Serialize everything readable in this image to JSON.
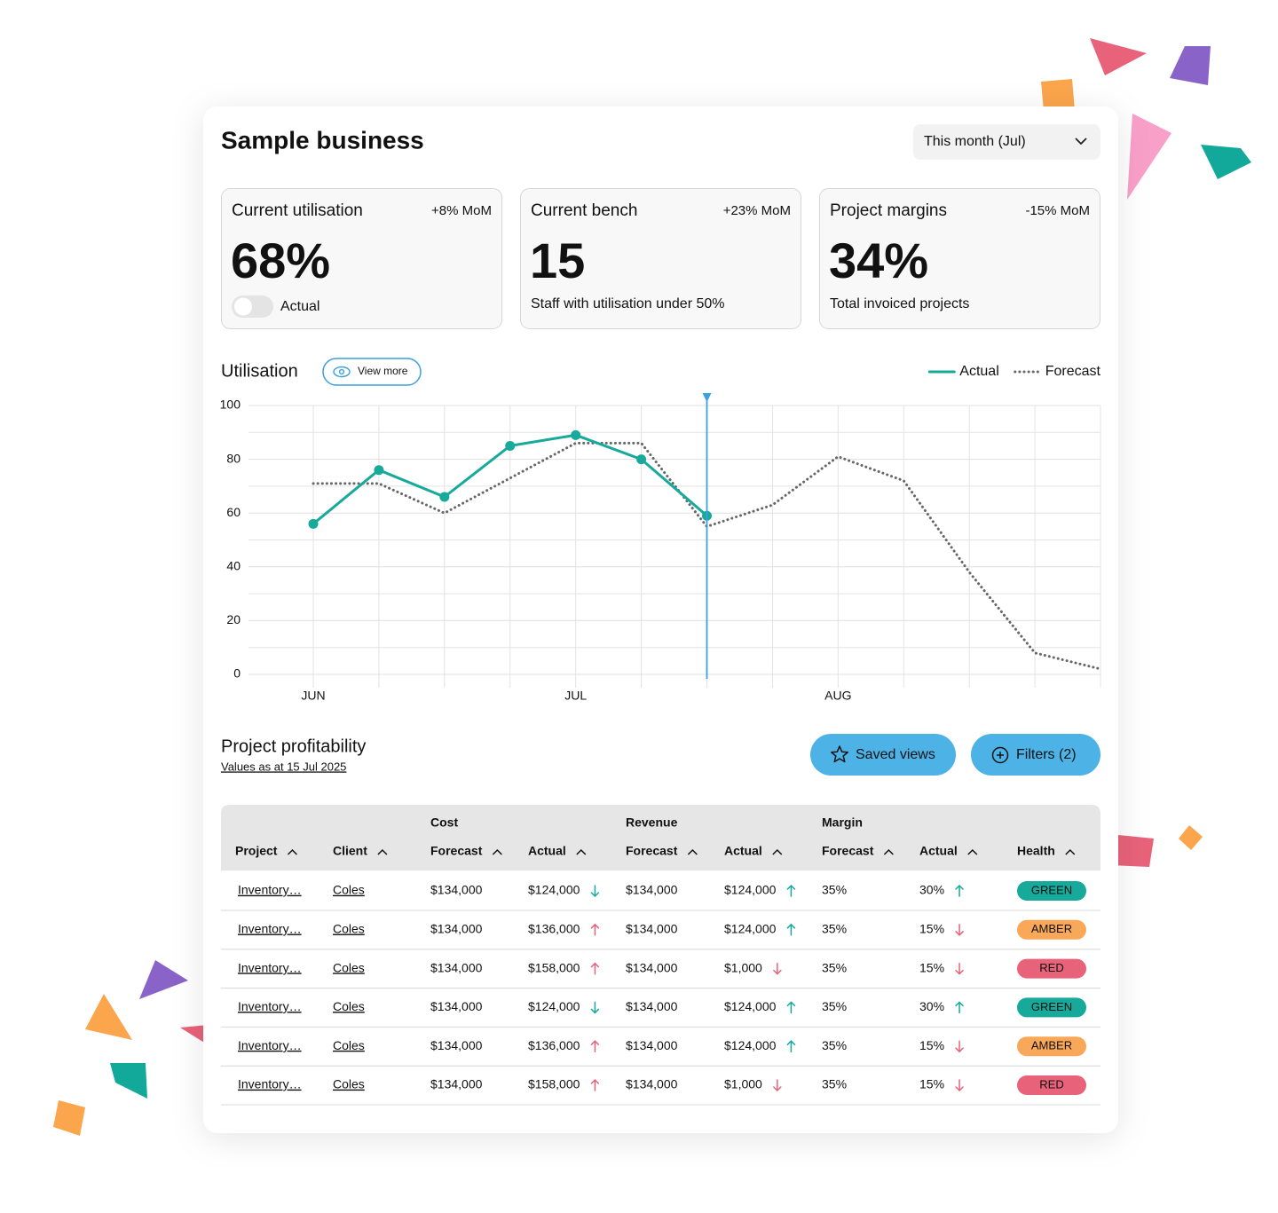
{
  "header": {
    "title": "Sample business",
    "period_select": "This month (Jul)"
  },
  "tones": {
    "good": "#17a99a",
    "bad": "#e8637a"
  },
  "kpis": [
    {
      "title": "Current utilisation",
      "delta": "+8% MoM",
      "delta_tone": "good",
      "value": "68%",
      "caption": "Actual"
    },
    {
      "title": "Current bench",
      "delta": "+23% MoM",
      "delta_tone": "bad",
      "value": "15",
      "caption": "Staff with utilisation under 50%"
    },
    {
      "title": "Project margins",
      "delta": "-15% MoM",
      "delta_tone": "bad",
      "value": "34%",
      "caption": "Total invoiced projects"
    }
  ],
  "utilisation": {
    "title": "Utilisation",
    "view_more": "View more"
  },
  "chart_data": {
    "type": "line",
    "categories": [
      "JUN",
      null,
      null,
      null,
      "JUL",
      null,
      null,
      null,
      "AUG",
      null,
      null,
      null,
      null
    ],
    "series": [
      {
        "name": "Actual",
        "color": "#17a99a",
        "style": "solid",
        "values": [
          56,
          76,
          66,
          85,
          89,
          80,
          59,
          null,
          null,
          null,
          null,
          null,
          null
        ]
      },
      {
        "name": "Forecast",
        "color": "#666666",
        "style": "dotted",
        "values": [
          71,
          71,
          60,
          73,
          86,
          86,
          55,
          63,
          81,
          72,
          38,
          8,
          2
        ]
      }
    ],
    "ylim": [
      0,
      100
    ],
    "yticks": [
      0,
      20,
      40,
      60,
      80,
      100
    ],
    "minor_yticks": [
      10,
      30,
      50,
      70,
      90
    ],
    "grid": true,
    "legend": "top-right",
    "highlight_category": 6,
    "highlight_color": "#3aa0e0"
  },
  "profitability": {
    "title": "Project profitability",
    "subtitle": "Values as at 15 Jul 2025",
    "buttons": [
      "Saved views",
      "Filters (2)"
    ]
  },
  "table": {
    "groups": [
      null,
      null,
      "Cost",
      null,
      "Revenue",
      null,
      "Margin",
      null,
      null
    ],
    "columns": [
      "Project",
      "Client",
      "Forecast",
      "Actual",
      "Forecast",
      "Actual",
      "Forecast",
      "Actual",
      "Health"
    ],
    "rows": [
      [
        "Inventory…",
        "Coles",
        "$134,000",
        {
          "text": "$124,000",
          "trend": "down",
          "tone": "good"
        },
        "$134,000",
        {
          "text": "$124,000",
          "trend": "up",
          "tone": "good"
        },
        "35%",
        {
          "text": "30%",
          "trend": "up",
          "tone": "good"
        },
        {
          "text": "GREEN",
          "color": "#17a99a"
        }
      ],
      [
        "Inventory…",
        "Coles",
        "$134,000",
        {
          "text": "$136,000",
          "trend": "up",
          "tone": "bad"
        },
        "$134,000",
        {
          "text": "$124,000",
          "trend": "up",
          "tone": "good"
        },
        "35%",
        {
          "text": "15%",
          "trend": "down",
          "tone": "bad"
        },
        {
          "text": "AMBER",
          "color": "#f9a85a"
        }
      ],
      [
        "Inventory…",
        "Coles",
        "$134,000",
        {
          "text": "$158,000",
          "trend": "up",
          "tone": "bad"
        },
        "$134,000",
        {
          "text": "$1,000",
          "trend": "down",
          "tone": "bad"
        },
        "35%",
        {
          "text": "15%",
          "trend": "down",
          "tone": "bad"
        },
        {
          "text": "RED",
          "color": "#e8637a"
        }
      ],
      [
        "Inventory…",
        "Coles",
        "$134,000",
        {
          "text": "$124,000",
          "trend": "down",
          "tone": "good"
        },
        "$134,000",
        {
          "text": "$124,000",
          "trend": "up",
          "tone": "good"
        },
        "35%",
        {
          "text": "30%",
          "trend": "up",
          "tone": "good"
        },
        {
          "text": "GREEN",
          "color": "#17a99a"
        }
      ],
      [
        "Inventory…",
        "Coles",
        "$134,000",
        {
          "text": "$136,000",
          "trend": "up",
          "tone": "bad"
        },
        "$134,000",
        {
          "text": "$124,000",
          "trend": "up",
          "tone": "good"
        },
        "35%",
        {
          "text": "15%",
          "trend": "down",
          "tone": "bad"
        },
        {
          "text": "AMBER",
          "color": "#f9a85a"
        }
      ],
      [
        "Inventory…",
        "Coles",
        "$134,000",
        {
          "text": "$158,000",
          "trend": "up",
          "tone": "bad"
        },
        "$134,000",
        {
          "text": "$1,000",
          "trend": "down",
          "tone": "bad"
        },
        "35%",
        {
          "text": "15%",
          "trend": "down",
          "tone": "bad"
        },
        {
          "text": "RED",
          "color": "#e8637a"
        }
      ]
    ]
  }
}
